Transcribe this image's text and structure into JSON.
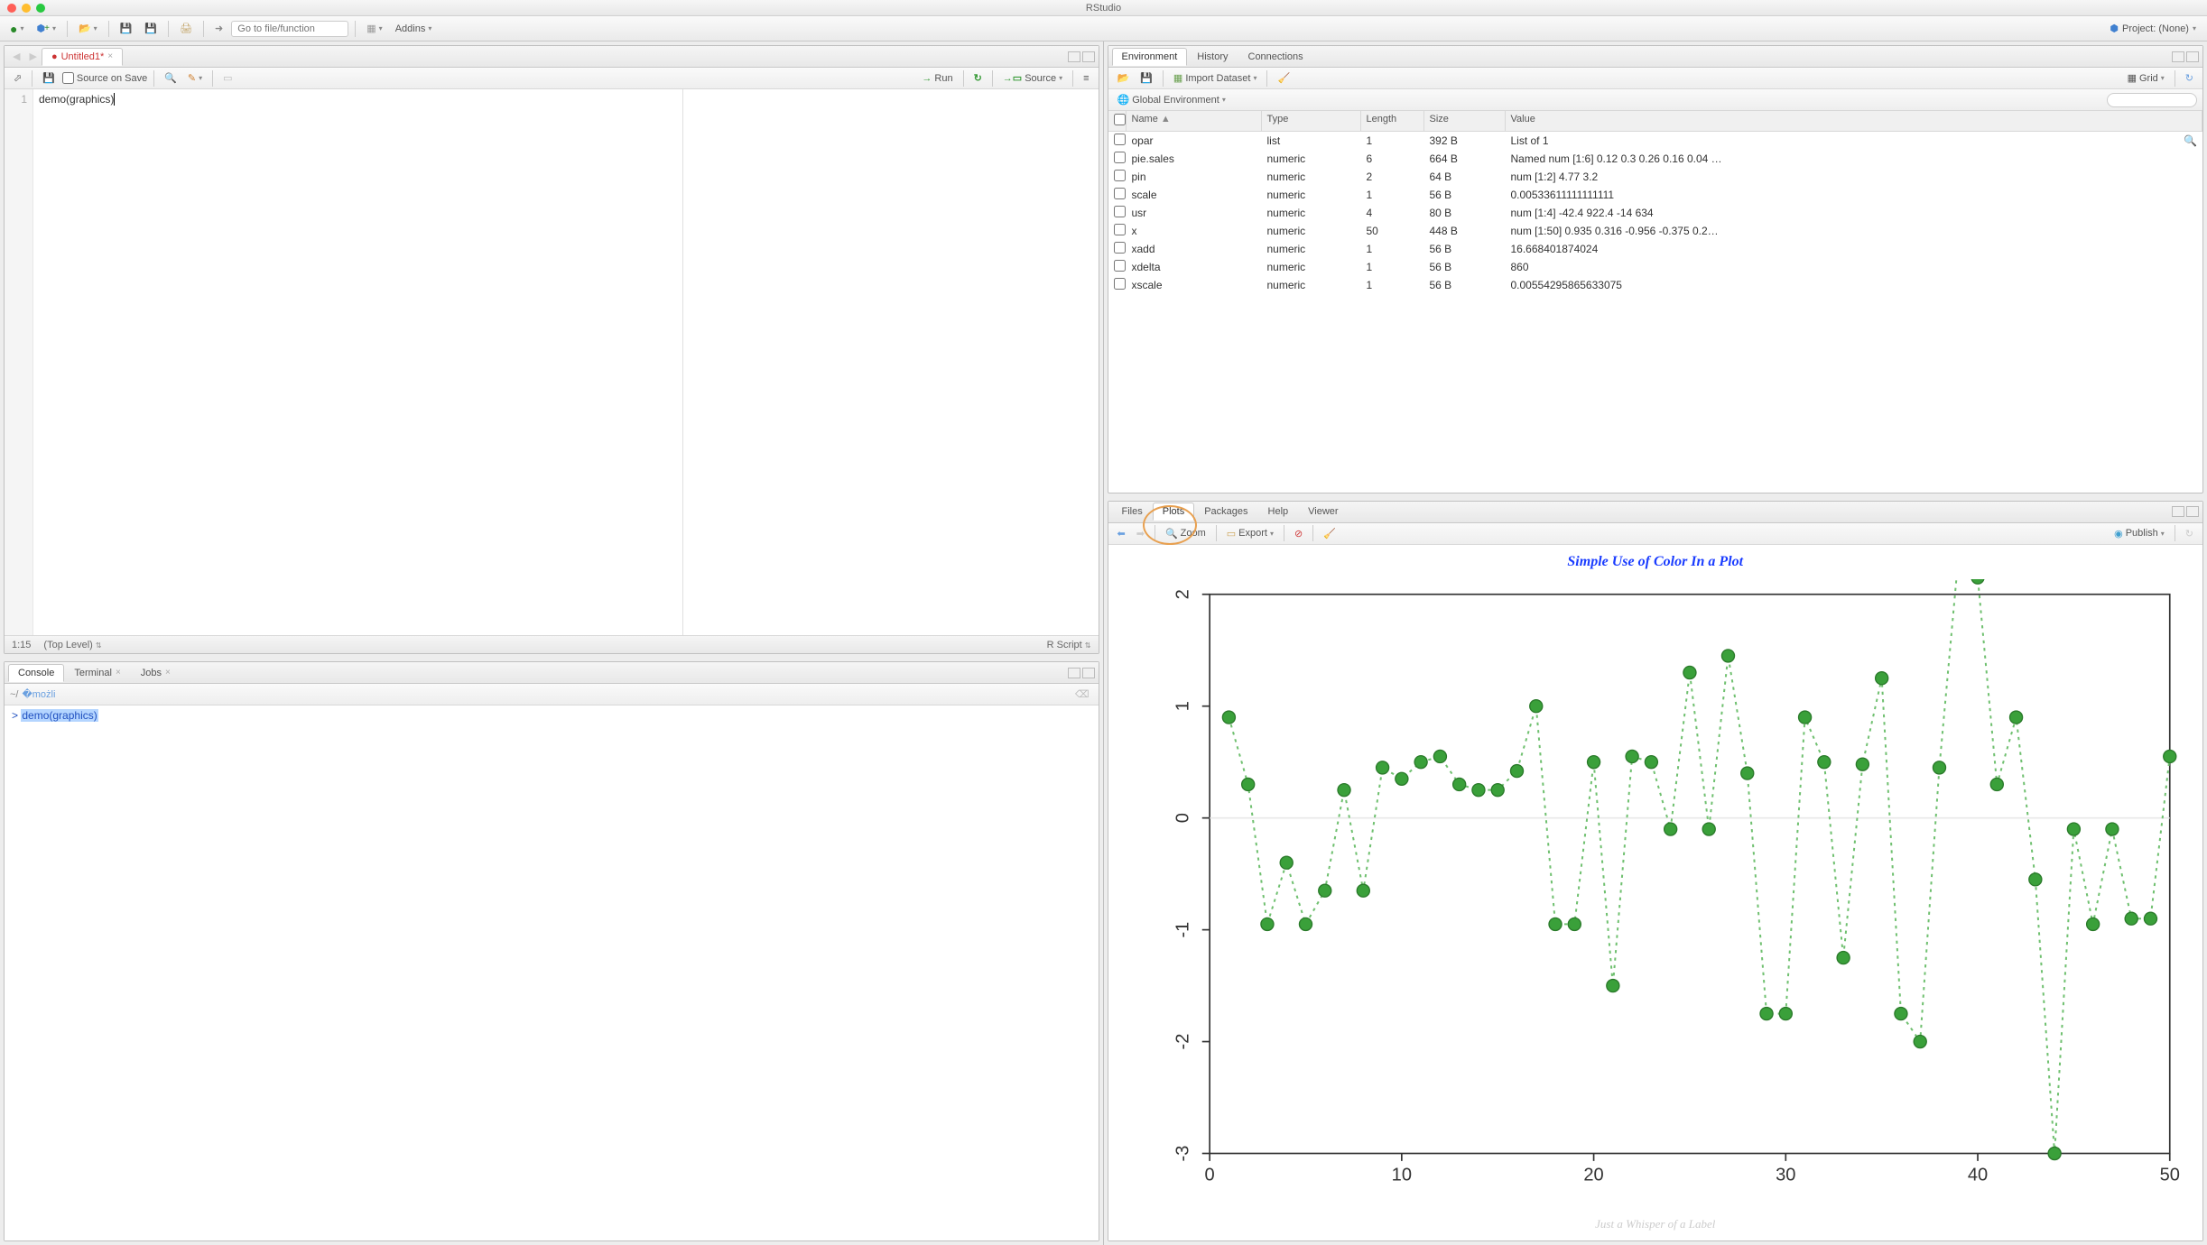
{
  "app": {
    "title": "RStudio"
  },
  "toolbar": {
    "goto_placeholder": "Go to file/function",
    "addins_label": "Addins",
    "project_label": "Project: (None)"
  },
  "source": {
    "tab_label": "Untitled1*",
    "save_on_source_label": "Source on Save",
    "run_label": "Run",
    "source_btn_label": "Source",
    "line_number": "1",
    "code_text": "demo(graphics)",
    "status_pos": "1:15",
    "status_scope": "(Top Level)",
    "status_type": "R Script"
  },
  "console": {
    "tabs": {
      "console": "Console",
      "terminal": "Terminal",
      "jobs": "Jobs"
    },
    "path": "~/",
    "prompt": ">",
    "cmd": "demo(graphics)"
  },
  "env": {
    "tabs": {
      "environment": "Environment",
      "history": "History",
      "connections": "Connections"
    },
    "import_label": "Import Dataset",
    "scope_label": "Global Environment",
    "grid_label": "Grid",
    "columns": {
      "name": "Name",
      "type": "Type",
      "length": "Length",
      "size": "Size",
      "value": "Value"
    },
    "rows": [
      {
        "name": "opar",
        "type": "list",
        "length": "1",
        "size": "392 B",
        "value": "List of 1"
      },
      {
        "name": "pie.sales",
        "type": "numeric",
        "length": "6",
        "size": "664 B",
        "value": "Named num [1:6] 0.12 0.3 0.26 0.16 0.04 …"
      },
      {
        "name": "pin",
        "type": "numeric",
        "length": "2",
        "size": "64 B",
        "value": "num [1:2] 4.77 3.2"
      },
      {
        "name": "scale",
        "type": "numeric",
        "length": "1",
        "size": "56 B",
        "value": "0.00533611111111111"
      },
      {
        "name": "usr",
        "type": "numeric",
        "length": "4",
        "size": "80 B",
        "value": "num [1:4] -42.4 922.4 -14 634"
      },
      {
        "name": "x",
        "type": "numeric",
        "length": "50",
        "size": "448 B",
        "value": "num [1:50] 0.935 0.316 -0.956 -0.375 0.2…"
      },
      {
        "name": "xadd",
        "type": "numeric",
        "length": "1",
        "size": "56 B",
        "value": "16.668401874024"
      },
      {
        "name": "xdelta",
        "type": "numeric",
        "length": "1",
        "size": "56 B",
        "value": "860"
      },
      {
        "name": "xscale",
        "type": "numeric",
        "length": "1",
        "size": "56 B",
        "value": "0.00554295865633075"
      }
    ]
  },
  "plots": {
    "tabs": {
      "files": "Files",
      "plots": "Plots",
      "packages": "Packages",
      "help": "Help",
      "viewer": "Viewer"
    },
    "zoom_label": "Zoom",
    "export_label": "Export",
    "publish_label": "Publish",
    "chart": {
      "title": "Simple Use of Color In a Plot",
      "subtitle": "Just a Whisper of a Label",
      "title_color": "#1a3cff",
      "point_color": "#3aa03a",
      "line_color": "#70c070",
      "xlim": [
        0,
        50
      ],
      "ylim": [
        -3,
        2
      ],
      "xticks": [
        0,
        10,
        20,
        30,
        40,
        50
      ],
      "yticks": [
        -3,
        -2,
        -1,
        0,
        1,
        2
      ],
      "x": [
        1,
        2,
        3,
        4,
        5,
        6,
        7,
        8,
        9,
        10,
        11,
        12,
        13,
        14,
        15,
        16,
        17,
        18,
        19,
        20,
        21,
        22,
        23,
        24,
        25,
        26,
        27,
        28,
        29,
        30,
        31,
        32,
        33,
        34,
        35,
        36,
        37,
        38,
        39,
        40,
        41,
        42,
        43,
        44,
        45,
        46,
        47,
        48,
        49,
        50
      ],
      "y": [
        0.9,
        0.3,
        -0.95,
        -0.4,
        -0.95,
        -0.65,
        0.25,
        -0.65,
        0.45,
        0.35,
        0.5,
        0.55,
        0.3,
        0.25,
        0.25,
        0.42,
        1.0,
        -0.95,
        -0.95,
        0.5,
        -1.5,
        0.55,
        0.5,
        -0.1,
        1.3,
        -0.1,
        1.45,
        0.4,
        -1.75,
        -1.75,
        0.9,
        0.5,
        -1.25,
        0.48,
        1.25,
        -1.75,
        -2.0,
        0.45,
        2.35,
        2.15,
        0.3,
        0.9,
        -0.55,
        -3.0,
        -0.1,
        -0.95,
        -0.1,
        -0.9,
        -0.9,
        0.55
      ]
    }
  }
}
